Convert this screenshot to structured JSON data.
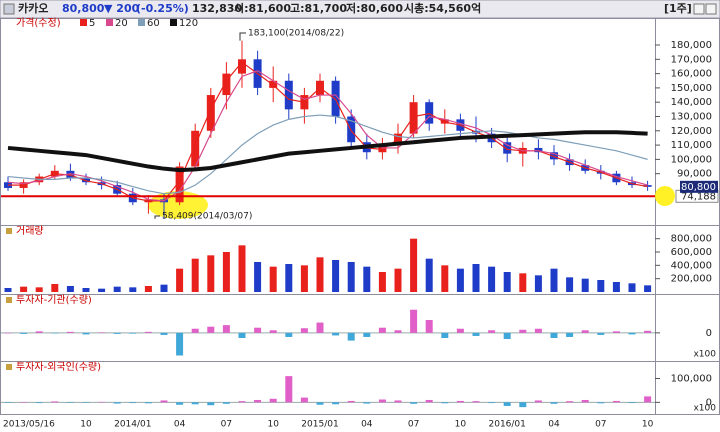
{
  "header": {
    "name": "카카오",
    "price": "80,800",
    "change": "▼ 200",
    "change_pct": "(-0.25%)",
    "volume": "132,830",
    "open": "시:81,600",
    "high": "고:81,700",
    "low": "저:80,600",
    "market_cap": "시총:54,560억",
    "period": "[1주]"
  },
  "chart_data": [
    {
      "type": "candlestick",
      "title": "가격(수정)",
      "categories": [
        "2013/05/16",
        null,
        null,
        null,
        null,
        "10",
        null,
        null,
        "2014/01",
        null,
        null,
        "04",
        null,
        null,
        "07",
        null,
        null,
        "10",
        null,
        null,
        "2015/01",
        null,
        null,
        "04",
        null,
        null,
        "07",
        null,
        null,
        "10",
        null,
        null,
        "2016/01",
        null,
        null,
        "04",
        null,
        null,
        "07",
        null,
        null,
        "10"
      ],
      "open": [
        84000,
        80000,
        84000,
        88000,
        92000,
        87000,
        84000,
        82000,
        76000,
        70000,
        72000,
        70000,
        95000,
        120000,
        145000,
        160000,
        170000,
        150000,
        155000,
        135000,
        145000,
        155000,
        130000,
        112000,
        105000,
        110000,
        118000,
        140000,
        125000,
        128000,
        120000,
        118000,
        112000,
        104000,
        108000,
        105000,
        100000,
        96000,
        92000,
        90000,
        84000,
        82000
      ],
      "high": [
        88000,
        86000,
        90000,
        96000,
        97000,
        90000,
        88000,
        85000,
        80000,
        75000,
        76000,
        98000,
        125000,
        150000,
        168000,
        183100,
        176000,
        165000,
        160000,
        150000,
        160000,
        158000,
        135000,
        118000,
        115000,
        125000,
        145000,
        142000,
        135000,
        132000,
        130000,
        122000,
        116000,
        112000,
        114000,
        110000,
        104000,
        100000,
        96000,
        92000,
        88000,
        85000
      ],
      "low": [
        78000,
        76000,
        82000,
        86000,
        85000,
        82000,
        79000,
        74000,
        68000,
        62000,
        58409,
        68000,
        92000,
        115000,
        135000,
        150000,
        145000,
        140000,
        128000,
        125000,
        140000,
        125000,
        108000,
        100000,
        100000,
        104000,
        115000,
        120000,
        118000,
        115000,
        112000,
        108000,
        98000,
        95000,
        100000,
        96000,
        92000,
        90000,
        86000,
        82000,
        80000,
        78000
      ],
      "close": [
        80000,
        84000,
        88000,
        92000,
        87000,
        84000,
        82000,
        76000,
        70000,
        72000,
        70000,
        95000,
        120000,
        145000,
        160000,
        170000,
        150000,
        155000,
        135000,
        145000,
        155000,
        130000,
        112000,
        105000,
        110000,
        118000,
        140000,
        125000,
        128000,
        120000,
        118000,
        112000,
        104000,
        108000,
        105000,
        100000,
        96000,
        92000,
        90000,
        84000,
        82000,
        80800
      ],
      "up_color": "#e8211c",
      "down_color": "#1e3cc8",
      "series": [
        {
          "name": "5",
          "color": "#e8211c",
          "values": [
            82000,
            82000,
            86000,
            90000,
            89000,
            85000,
            83000,
            79000,
            73000,
            71000,
            71000,
            85000,
            110000,
            135000,
            155000,
            168000,
            160000,
            152000,
            142000,
            140000,
            150000,
            142000,
            120000,
            108000,
            107000,
            114000,
            130000,
            132000,
            126000,
            124000,
            119000,
            115000,
            107000,
            106000,
            106000,
            102000,
            98000,
            94000,
            91000,
            87000,
            83000,
            81000
          ]
        },
        {
          "name": "20",
          "color": "#d9488c",
          "values": [
            84000,
            83000,
            85000,
            88000,
            90000,
            88000,
            85000,
            81000,
            77000,
            72000,
            71000,
            78000,
            95000,
            118000,
            140000,
            158000,
            162000,
            155000,
            148000,
            142000,
            145000,
            145000,
            132000,
            117000,
            108000,
            108000,
            118000,
            130000,
            128000,
            125000,
            122000,
            117000,
            110000,
            106000,
            106000,
            104000,
            100000,
            96000,
            92000,
            88000,
            85000,
            82000
          ]
        },
        {
          "name": "60",
          "color": "#7f9fb8",
          "values": [
            88000,
            87000,
            86000,
            86000,
            87000,
            87000,
            86000,
            84000,
            81000,
            78000,
            76000,
            77000,
            82000,
            90000,
            100000,
            110000,
            118000,
            124000,
            128000,
            130000,
            131000,
            130000,
            127000,
            123000,
            119000,
            116000,
            115000,
            116000,
            117000,
            118000,
            119000,
            120000,
            119000,
            117000,
            115000,
            114000,
            112000,
            110000,
            108000,
            106000,
            103000,
            100000
          ]
        },
        {
          "name": "120",
          "color": "#111111",
          "values": [
            108000,
            107000,
            106000,
            105000,
            104000,
            103000,
            101000,
            99000,
            97000,
            95000,
            93500,
            92500,
            93000,
            94000,
            96000,
            98000,
            100000,
            102000,
            104000,
            105000,
            106000,
            107000,
            108000,
            109000,
            110000,
            111000,
            112000,
            113000,
            114000,
            115000,
            115500,
            116000,
            116500,
            117000,
            117500,
            118000,
            118500,
            119000,
            119000,
            119000,
            118500,
            118000
          ]
        }
      ],
      "ylim": [
        56200,
        192600
      ],
      "yticks": [
        {
          "value": 180000,
          "label": "180,000"
        },
        {
          "value": 170000,
          "label": "170,000"
        },
        {
          "value": 160000,
          "label": "160,000"
        },
        {
          "value": 150000,
          "label": "150,000"
        },
        {
          "value": 140000,
          "label": "140,000"
        },
        {
          "value": 130000,
          "label": "130,000"
        },
        {
          "value": 120000,
          "label": "120,000"
        },
        {
          "value": 110000,
          "label": "110,000"
        },
        {
          "value": 100000,
          "label": "100,000"
        },
        {
          "value": 90000,
          "label": "90,000"
        }
      ],
      "hline": {
        "value": 74188,
        "label": "74,188",
        "color": "#e00000"
      },
      "last_price": {
        "value": 80800,
        "label": "80,800"
      },
      "annotations": [
        {
          "value": 183100,
          "label": "183,100(2014/08/22)"
        },
        {
          "value": 58409,
          "label": "58,409(2014/03/07)"
        }
      ]
    },
    {
      "type": "bar",
      "title": "거래량",
      "values": [
        60000,
        80000,
        70000,
        120000,
        90000,
        60000,
        50000,
        80000,
        70000,
        90000,
        110000,
        350000,
        500000,
        550000,
        600000,
        700000,
        450000,
        380000,
        420000,
        400000,
        520000,
        480000,
        450000,
        380000,
        300000,
        350000,
        800000,
        500000,
        400000,
        350000,
        420000,
        380000,
        300000,
        280000,
        250000,
        350000,
        220000,
        200000,
        180000,
        150000,
        130000,
        100000
      ],
      "ylim": [
        0,
        900000
      ],
      "yticks": [
        {
          "value": 800000,
          "label": "800,000"
        },
        {
          "value": 600000,
          "label": "600,000"
        },
        {
          "value": 400000,
          "label": "400,000"
        },
        {
          "value": 200000,
          "label": "200,000"
        }
      ]
    },
    {
      "type": "bar",
      "title": "투자자-기관(수량)",
      "values": [
        0,
        -2000,
        3000,
        -1000,
        2000,
        -3000,
        1000,
        -2000,
        -1500,
        2000,
        -4000,
        -44000,
        8000,
        12000,
        15000,
        -10000,
        10000,
        5000,
        -8000,
        9000,
        20000,
        -5000,
        -15000,
        -8000,
        10000,
        5000,
        45000,
        25000,
        -10000,
        8000,
        -6000,
        5000,
        -12000,
        6000,
        8000,
        -10000,
        -8000,
        5000,
        -4000,
        3000,
        -3000,
        4000
      ],
      "ylim": [
        -45000,
        60000
      ],
      "yticks": [
        0
      ],
      "unit": "x100",
      "pos_color": "#e060c8",
      "neg_color": "#3fa8d8"
    },
    {
      "type": "bar",
      "title": "투자자-외국인(수량)",
      "values": [
        -2000,
        1000,
        -3000,
        4000,
        -2000,
        -1000,
        2000,
        -5000,
        -3000,
        -4000,
        8000,
        -10000,
        -8000,
        -12000,
        -6000,
        5000,
        10000,
        15000,
        110000,
        20000,
        -10000,
        -8000,
        6000,
        -5000,
        12000,
        8000,
        -6000,
        10000,
        -4000,
        6000,
        5000,
        -3000,
        -15000,
        -20000,
        8000,
        -6000,
        5000,
        10000,
        -4000,
        6000,
        -3000,
        25000
      ],
      "ylim": [
        -32000,
        144000
      ],
      "yticks": [
        {
          "value": 100000,
          "label": "100,000"
        },
        0
      ],
      "unit": "x100",
      "pos_color": "#e060c8",
      "neg_color": "#3fa8d8"
    }
  ]
}
